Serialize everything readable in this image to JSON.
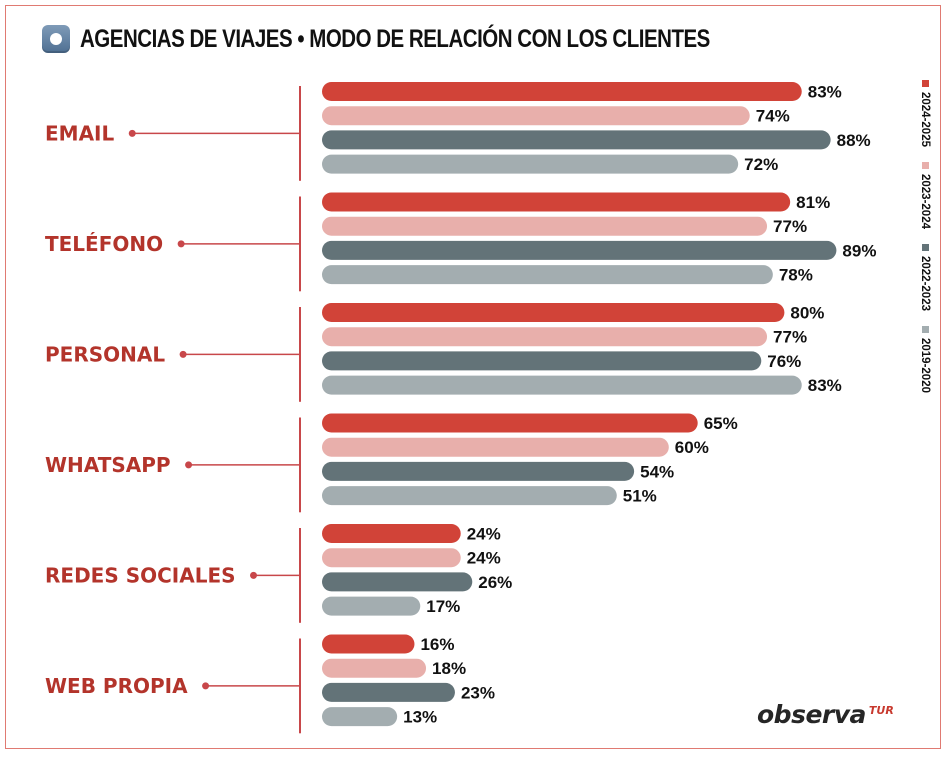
{
  "header": {
    "title": "AGENCIAS DE VIAJES • MODO DE RELACIÓN CON LOS CLIENTES",
    "icon": "rounded-square-dot-icon"
  },
  "logo": {
    "main": "observa",
    "sub": "TUR"
  },
  "colors": {
    "frame": "#e07a72",
    "category_text": "#b3342b",
    "connector": "#c8474a",
    "series": [
      "#d14338",
      "#e8afab",
      "#637378",
      "#a3adb0"
    ]
  },
  "chart_data": {
    "type": "bar",
    "orientation": "horizontal",
    "title": "AGENCIAS DE VIAJES • MODO DE RELACIÓN CON LOS CLIENTES",
    "xlabel": "",
    "ylabel": "",
    "xlim": [
      0,
      100
    ],
    "grid": false,
    "legend_position": "right (vertical)",
    "categories": [
      "EMAIL",
      "TELÉFONO",
      "PERSONAL",
      "WHATSAPP",
      "REDES SOCIALES",
      "WEB PROPIA"
    ],
    "series": [
      {
        "name": "2024-2025",
        "color": "#d14338",
        "values": [
          83,
          81,
          80,
          65,
          24,
          16
        ]
      },
      {
        "name": "2023-2024",
        "color": "#e8afab",
        "values": [
          74,
          77,
          77,
          60,
          24,
          18
        ]
      },
      {
        "name": "2022-2023",
        "color": "#637378",
        "values": [
          88,
          89,
          76,
          54,
          26,
          23
        ]
      },
      {
        "name": "2019-2020",
        "color": "#a3adb0",
        "values": [
          72,
          78,
          83,
          51,
          17,
          13
        ]
      }
    ],
    "value_suffix": "%"
  }
}
